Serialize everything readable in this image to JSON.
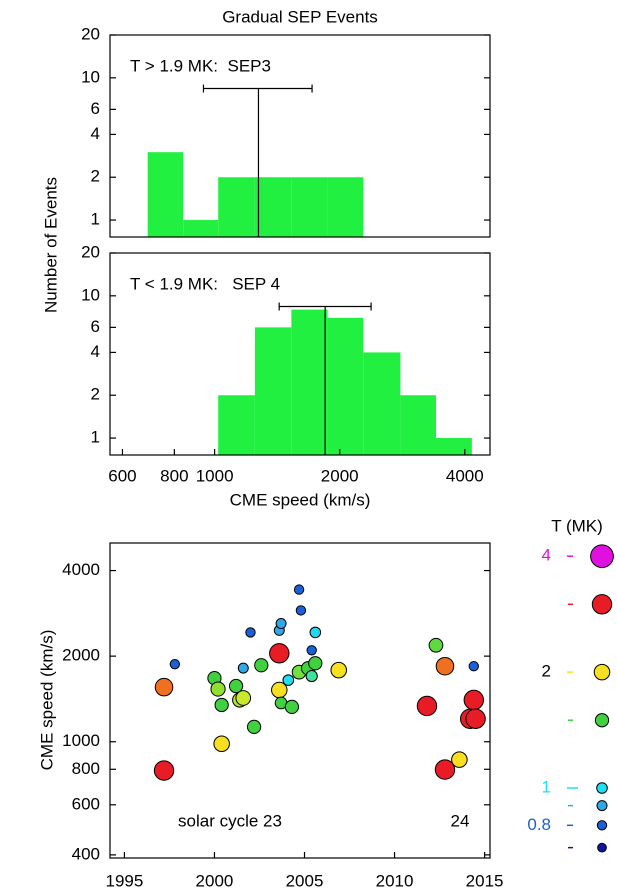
{
  "chart_data": [
    {
      "type": "histogram",
      "title": "Gradual SEP Events",
      "ylabel": "Number of Events",
      "annotation": "T > 1.9 MK:  SEP3",
      "bins": [
        690,
        840,
        1020,
        1250,
        1530,
        1870,
        2280
      ],
      "counts": [
        3,
        1,
        2,
        2,
        2,
        2
      ],
      "color": "#22f040",
      "median": 1275,
      "median_range": [
        940,
        1716
      ],
      "xlim": [
        560,
        4600
      ],
      "xscale": "log",
      "ylim": [
        0.76,
        20
      ],
      "yscale": "log",
      "yticks": [
        1,
        2,
        4,
        6,
        10,
        20
      ]
    },
    {
      "type": "histogram",
      "xlabel": "CME speed (km/s)",
      "annotation": "T < 1.9 MK:   SEP 4",
      "bins": [
        1020,
        1250,
        1530,
        1870,
        2280,
        2800,
        3410,
        4160
      ],
      "counts": [
        2,
        6,
        8,
        7,
        4,
        2,
        1
      ],
      "color": "#22f040",
      "median": 1845,
      "median_range": [
        1430,
        2380
      ],
      "xlim": [
        560,
        4600
      ],
      "xscale": "log",
      "xticks": [
        600,
        800,
        1000,
        2000,
        4000
      ],
      "ylim": [
        0.76,
        20
      ],
      "yscale": "log",
      "yticks": [
        1,
        2,
        4,
        6,
        10,
        20
      ]
    },
    {
      "type": "scatter",
      "ylabel": "CME speed (km/s)",
      "annotations": [
        "solar cycle 23",
        "24"
      ],
      "x": [
        1997.2,
        1997.2,
        1997.8,
        2000.4,
        2000.0,
        2000.2,
        2000.4,
        2001.2,
        2001.4,
        2001.6,
        2001.6,
        2002.0,
        2002.2,
        2002.6,
        2003.6,
        2003.6,
        2003.7,
        2003.6,
        2003.7,
        2004.1,
        2004.7,
        2004.3,
        2004.7,
        2004.8,
        2005.2,
        2005.4,
        2005.4,
        2005.6,
        2005.6,
        2006.9,
        2011.8,
        2012.3,
        2012.8,
        2012.8,
        2013.6,
        2014.4,
        2014.2,
        2014.5,
        2014.4
      ],
      "values": [
        792,
        1556,
        1874,
        984,
        1674,
        1532,
        1347,
        1570,
        1402,
        1425,
        1815,
        2424,
        1128,
        1858,
        2047,
        1520,
        1369,
        2464,
        2605,
        1647,
        1757,
        1326,
        3428,
        2897,
        1813,
        1702,
        2097,
        2424,
        1888,
        1786,
        1336,
        2184,
        1843,
        798,
        865,
        1402,
        1204,
        1204,
        1843
      ],
      "temperature": [
        3,
        2.5,
        0.8,
        2,
        1.5,
        1.7,
        1.5,
        1.5,
        1.7,
        1.8,
        0.9,
        0.8,
        1.5,
        1.5,
        3,
        2,
        1.2,
        0.9,
        0.9,
        1,
        1.6,
        1.5,
        0.8,
        0.8,
        1.5,
        1.1,
        0.8,
        1,
        1.5,
        2,
        3,
        1.6,
        2.5,
        3,
        2,
        3,
        3,
        3,
        0.8
      ],
      "colors": [
        "#e81c24",
        "#f07020",
        "#1a60d8",
        "#f8e020",
        "#40d040",
        "#90e030",
        "#40d040",
        "#40d040",
        "#b0e030",
        "#c8e828",
        "#30a8e8",
        "#1a60d8",
        "#40d040",
        "#40d040",
        "#e81c24",
        "#f8e020",
        "#40d040",
        "#30a8e8",
        "#30a8e8",
        "#20e0f0",
        "#70e040",
        "#40d040",
        "#1a60d8",
        "#1a60d8",
        "#40d040",
        "#40e0a0",
        "#1a60d8",
        "#20d8f0",
        "#40d040",
        "#f8e020",
        "#e81c24",
        "#60d840",
        "#f07020",
        "#e81c24",
        "#f8e020",
        "#e81c24",
        "#e81c24",
        "#e81c24",
        "#1a60d8"
      ],
      "xlim": [
        1994.2,
        2015.3
      ],
      "xticks": [
        1995,
        2000,
        2005,
        2010,
        2015
      ],
      "ylim": [
        390,
        5000
      ],
      "yscale": "log",
      "yticks": [
        400,
        600,
        800,
        1000,
        2000,
        4000
      ],
      "legend": {
        "title": "T (MK)",
        "entries": [
          {
            "value": 4,
            "label": "4",
            "color": "#e010e0",
            "label_color": "#e010e0"
          },
          {
            "value": 3,
            "color": "#e81c24"
          },
          {
            "value": 2,
            "label": "2",
            "color": "#f8e020",
            "label_color": "#000000"
          },
          {
            "value": 1.5,
            "color": "#40d040"
          },
          {
            "value": 1,
            "label": "1",
            "color": "#20e0f0",
            "label_color": "#20e0f0"
          },
          {
            "value": 0.9,
            "color": "#30a8e8"
          },
          {
            "value": 0.8,
            "label": "0.8",
            "color": "#1a60d8",
            "label_color": "#1a60d8"
          },
          {
            "value": 0.7,
            "color": "#0a1aa0"
          }
        ]
      }
    }
  ]
}
